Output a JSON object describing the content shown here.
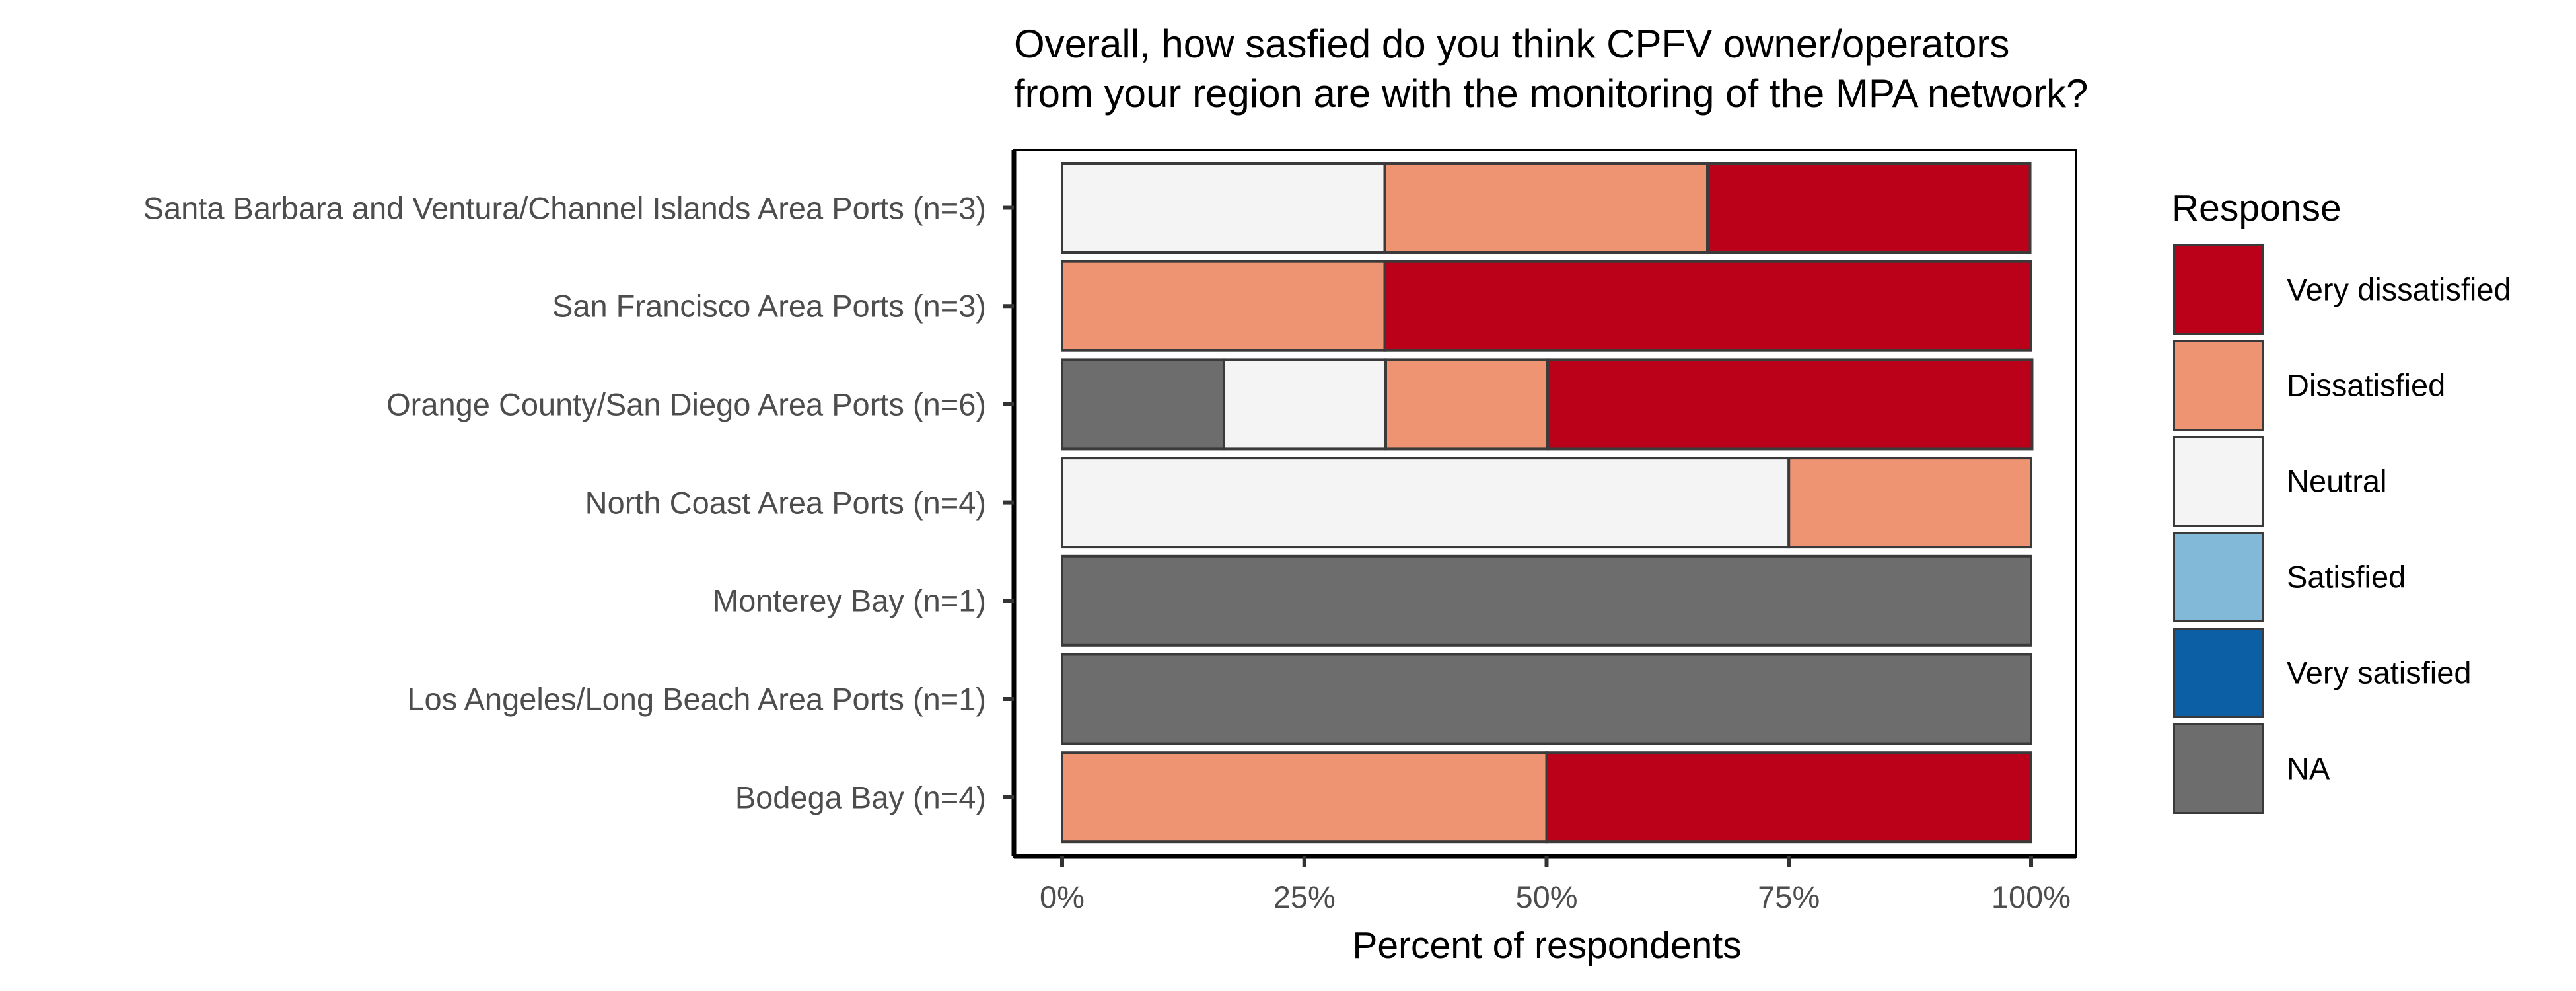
{
  "chart_data": {
    "type": "bar",
    "orientation": "horizontal",
    "stacked": true,
    "title_lines": [
      "Overall, how sasfied do you think CPFV owner/operators",
      "from your region are with the monitoring of the MPA network?"
    ],
    "xlabel": "Percent of respondents",
    "ylabel": "",
    "xlim": [
      0,
      100
    ],
    "x_ticks": [
      "0%",
      "25%",
      "50%",
      "75%",
      "100%"
    ],
    "legend_title": "Response",
    "legend_position": "right",
    "grid": false,
    "categories": [
      "Santa Barbara and Ventura/Channel Islands Area Ports (n=3)",
      "San Francisco Area Ports (n=3)",
      "Orange County/San Diego Area Ports (n=6)",
      "North Coast Area Ports (n=4)",
      "Monterey Bay (n=1)",
      "Los Angeles/Long Beach Area Ports (n=1)",
      "Bodega Bay (n=4)"
    ],
    "series": [
      {
        "name": "NA",
        "color": "#6d6d6d",
        "values": [
          0,
          0,
          16.7,
          0,
          100,
          100,
          0
        ]
      },
      {
        "name": "Very satisfied",
        "color": "#0c5ea5",
        "values": [
          0,
          0,
          0,
          0,
          0,
          0,
          0
        ]
      },
      {
        "name": "Satisfied",
        "color": "#82b8d8",
        "values": [
          0,
          0,
          0,
          0,
          0,
          0,
          0
        ]
      },
      {
        "name": "Neutral",
        "color": "#f4f4f4",
        "values": [
          33.3,
          0,
          16.7,
          75,
          0,
          0,
          0
        ]
      },
      {
        "name": "Dissatisfied",
        "color": "#ef9472",
        "values": [
          33.3,
          33.3,
          16.7,
          25,
          0,
          0,
          50
        ]
      },
      {
        "name": "Very dissatisfied",
        "color": "#bb0019",
        "values": [
          33.3,
          66.7,
          50,
          0,
          0,
          0,
          50
        ]
      }
    ],
    "legend_order": [
      "Very dissatisfied",
      "Dissatisfied",
      "Neutral",
      "Satisfied",
      "Very satisfied",
      "NA"
    ]
  }
}
